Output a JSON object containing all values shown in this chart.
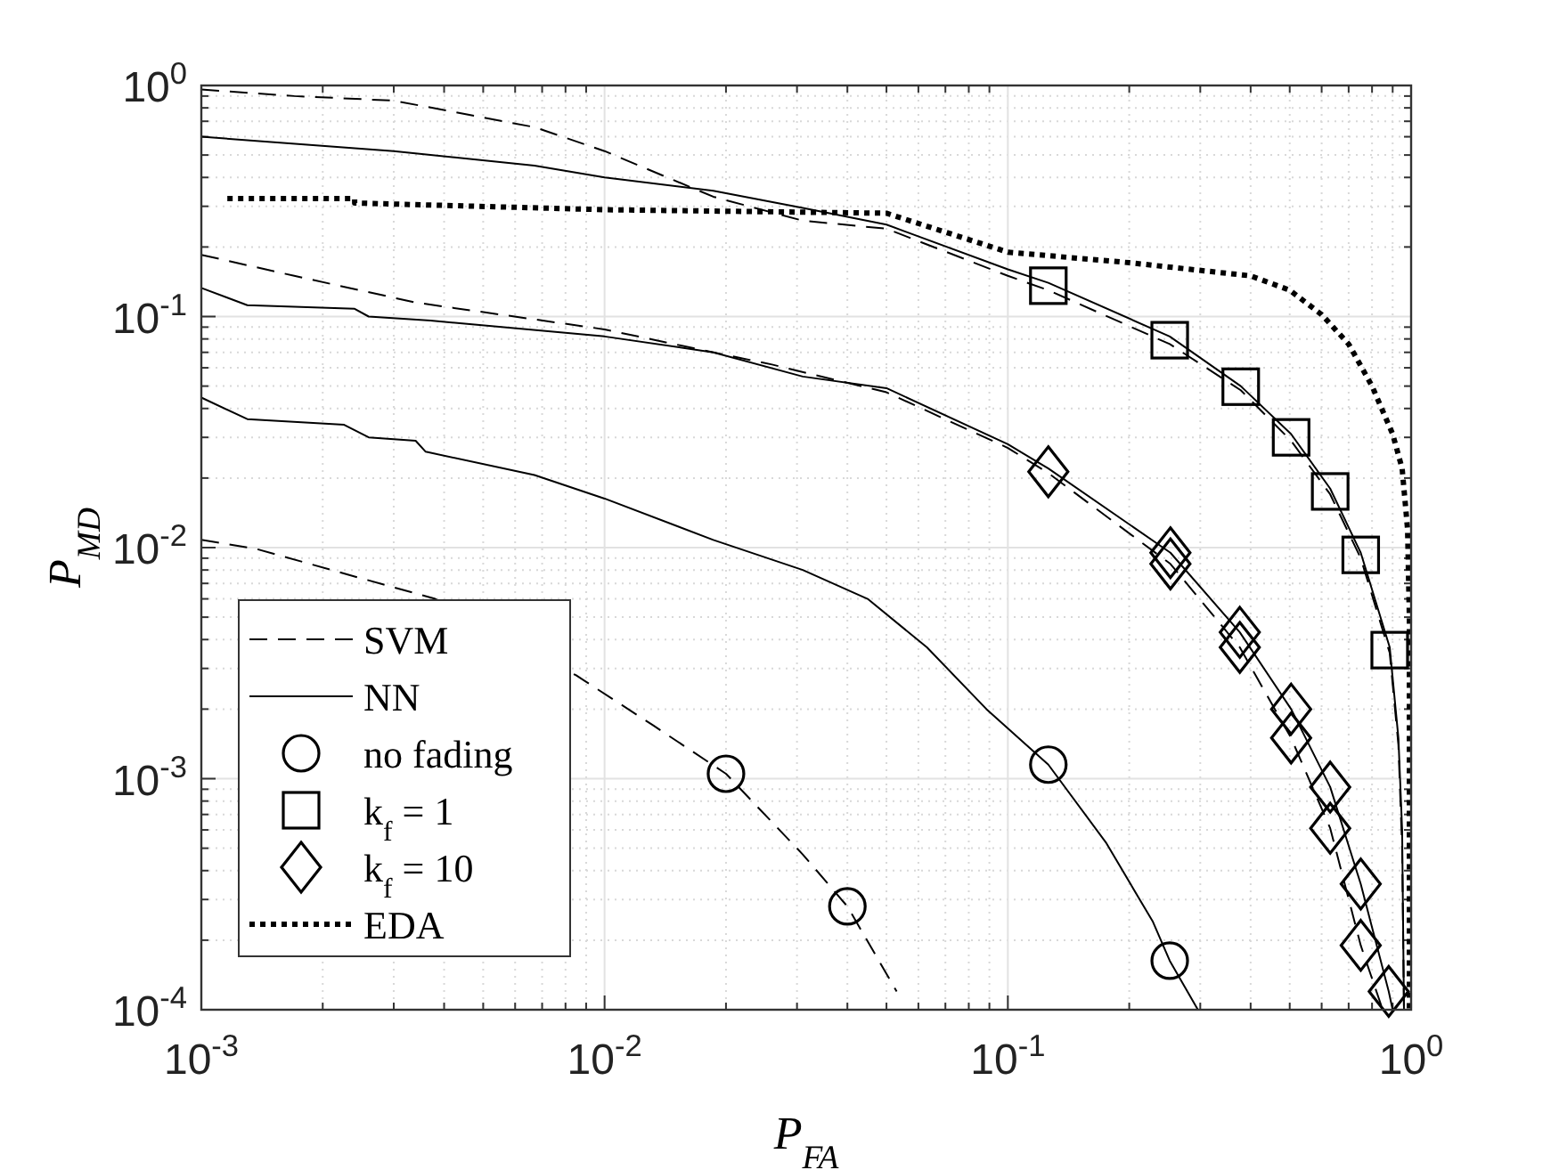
{
  "chart_data": {
    "type": "line",
    "xlabel": "P$_{FA}$",
    "ylabel": "P$_{MD}$",
    "log": "xy",
    "grid": true,
    "legend": "bottom left",
    "xlim": [
      0.001,
      1
    ],
    "ylim": [
      0.0001,
      1
    ],
    "xticks": [
      {
        "value": 0.001,
        "label": "10$^{-3}$"
      },
      {
        "value": 0.01,
        "label": "10$^{-2}$"
      },
      {
        "value": 0.1,
        "label": "10$^{-1}$"
      },
      {
        "value": 1,
        "label": "10$^{0}$"
      }
    ],
    "yticks": [
      {
        "value": 0.0001,
        "label": "10$^{-4}$"
      },
      {
        "value": 0.001,
        "label": "10$^{-3}$"
      },
      {
        "value": 0.01,
        "label": "10$^{-2}$"
      },
      {
        "value": 0.1,
        "label": "10$^{-1}$"
      },
      {
        "value": 1,
        "label": "10$^{0}$"
      }
    ],
    "series": [
      {
        "name": "SVM",
        "line_style": "dashed",
        "color": "#000000",
        "x": [
          0.001,
          0.0017,
          0.003,
          0.0067,
          0.01,
          0.0186,
          0.031,
          0.05,
          0.1,
          0.126,
          0.252,
          0.378,
          0.504,
          0.63,
          0.75,
          0.885,
          0.93,
          0.95,
          0.96
        ],
        "values": [
          0.96,
          0.9,
          0.86,
          0.66,
          0.52,
          0.33,
          0.26,
          0.24,
          0.15,
          0.13,
          0.076,
          0.048,
          0.029,
          0.017,
          0.009,
          0.0035,
          0.0014,
          0.0005,
          0.0001
        ]
      },
      {
        "name": "NN",
        "line_style": "solid",
        "color": "#000000",
        "x": [
          0.001,
          0.003,
          0.0067,
          0.01,
          0.0186,
          0.031,
          0.05,
          0.1,
          0.126,
          0.252,
          0.378,
          0.504,
          0.63,
          0.75,
          0.885,
          0.93,
          0.95,
          0.96
        ],
        "values": [
          0.6,
          0.52,
          0.45,
          0.4,
          0.35,
          0.295,
          0.25,
          0.16,
          0.14,
          0.082,
          0.05,
          0.031,
          0.018,
          0.0095,
          0.0037,
          0.0015,
          0.0006,
          0.0001
        ]
      },
      {
        "name": "no fading",
        "type": "scatter",
        "marker": "circle",
        "color": "#000000",
        "x": [
          0.02,
          0.04,
          0.126,
          0.252
        ],
        "values": [
          0.00105,
          0.00028,
          0.00115,
          0.000163
        ]
      },
      {
        "name": "k$_{f}$ = 1",
        "type": "scatter",
        "marker": "square",
        "color": "#000000",
        "x": [
          0.126,
          0.252,
          0.378,
          0.504,
          0.63,
          0.75,
          0.885
        ],
        "values": [
          0.136,
          0.079,
          0.0497,
          0.03,
          0.0175,
          0.0093,
          0.0036
        ]
      },
      {
        "name": "k$_{f}$ = 10",
        "type": "scatter",
        "marker": "diamond",
        "color": "#000000",
        "x": [
          0.126,
          0.253,
          0.253,
          0.376,
          0.376,
          0.504,
          0.504,
          0.63,
          0.63,
          0.75,
          0.75,
          0.88
        ],
        "values": [
          0.0213,
          0.0095,
          0.0085,
          0.0043,
          0.0037,
          0.002,
          0.0015,
          0.00092,
          0.00061,
          0.00035,
          0.00019,
          0.00012
        ]
      },
      {
        "name": "EDA",
        "line_style": "dotted",
        "color": "#000000",
        "x": [
          0.00116,
          0.0024,
          0.0024,
          0.01,
          0.05,
          0.1,
          0.2,
          0.4,
          0.5,
          0.6,
          0.7,
          0.8,
          0.9,
          0.95,
          0.98,
          0.99,
          0.99
        ],
        "values": [
          0.324,
          0.324,
          0.31,
          0.29,
          0.28,
          0.19,
          0.171,
          0.15,
          0.13,
          0.102,
          0.076,
          0.05,
          0.031,
          0.022,
          0.012,
          0.005,
          0.0001
        ]
      },
      {
        "line_style": "dashed",
        "color": "#000000",
        "x": [
          0.001,
          0.0017,
          0.0034,
          0.01,
          0.0186,
          0.026,
          0.05,
          0.1,
          0.126,
          0.253,
          0.376,
          0.504,
          0.63,
          0.75,
          0.85
        ],
        "values": [
          0.185,
          0.15,
          0.115,
          0.088,
          0.07,
          0.062,
          0.047,
          0.027,
          0.021,
          0.0085,
          0.0037,
          0.0015,
          0.00061,
          0.00019,
          0.0001
        ]
      },
      {
        "line_style": "dashed",
        "color": "#000000",
        "x": [
          0.001,
          0.00136,
          0.0024,
          0.0038,
          0.0085,
          0.0132,
          0.02,
          0.031,
          0.04,
          0.053
        ],
        "values": [
          0.0108,
          0.0099,
          0.0075,
          0.006,
          0.0028,
          0.0017,
          0.00105,
          0.00047,
          0.00028,
          0.00012
        ]
      },
      {
        "line_style": "solid",
        "color": "#000000",
        "x": [
          0.001,
          0.0013,
          0.0024,
          0.0026,
          0.0037,
          0.01,
          0.0186,
          0.031,
          0.05,
          0.1,
          0.126,
          0.253,
          0.376,
          0.504,
          0.63,
          0.75,
          0.88,
          0.9
        ],
        "values": [
          0.133,
          0.112,
          0.108,
          0.1,
          0.096,
          0.082,
          0.07,
          0.055,
          0.049,
          0.028,
          0.022,
          0.0095,
          0.0043,
          0.002,
          0.00092,
          0.00035,
          0.00012,
          0.0001
        ]
      },
      {
        "line_style": "solid",
        "color": "#000000",
        "x": [
          0.001,
          0.0013,
          0.00226,
          0.0026,
          0.0034,
          0.0036,
          0.0067,
          0.01,
          0.0186,
          0.031,
          0.0449,
          0.063,
          0.0885,
          0.126,
          0.175,
          0.229,
          0.252,
          0.296
        ],
        "values": [
          0.0446,
          0.036,
          0.034,
          0.03,
          0.029,
          0.026,
          0.0206,
          0.0163,
          0.0108,
          0.008,
          0.006,
          0.0037,
          0.002,
          0.00115,
          0.00053,
          0.00024,
          0.000163,
          0.0001
        ]
      }
    ]
  }
}
